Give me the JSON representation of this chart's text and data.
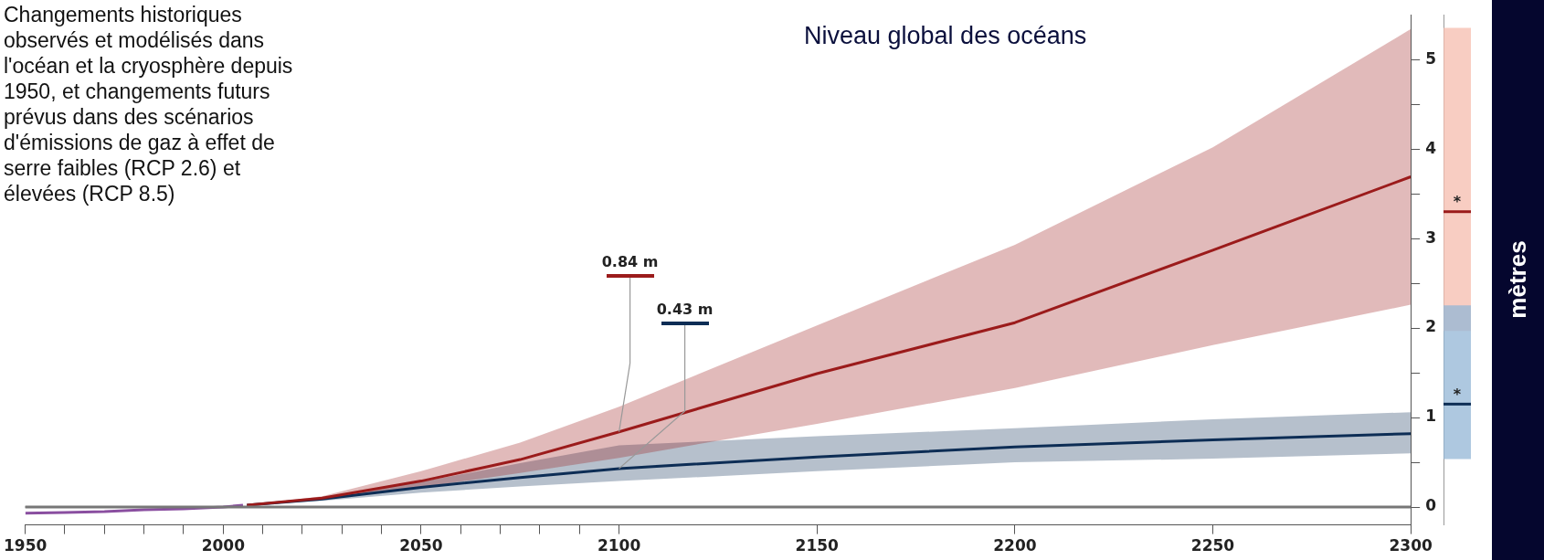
{
  "chart_data": [
    {
      "type": "line",
      "title": "Niveau global des océans",
      "annotations": [
        "Changements historiques observés et modélisés dans l'océan et la cryosphère depuis 1950, et changements futurs prévus dans des scénarios d'émissions de gaz à effet de serre faibles (RCP 2.6) et élevées (RCP 8.5)",
        {
          "text": "0.84 m",
          "x": 2100,
          "y": 0.84
        },
        {
          "text": "0.43 m",
          "x": 2100,
          "y": 0.43
        }
      ],
      "series": [
        {
          "color": "#8a4fa0",
          "x": [
            1950,
            1960,
            1970,
            1980,
            1990,
            2000,
            2005
          ],
          "values": [
            -0.07,
            -0.06,
            -0.05,
            -0.03,
            -0.02,
            0,
            0.02
          ]
        },
        {
          "color": "#9b1b1b",
          "x": [
            2006,
            2025,
            2050,
            2075,
            2100,
            2150,
            2200,
            2250,
            2300
          ],
          "values": [
            0.02,
            0.1,
            0.29,
            0.53,
            0.84,
            1.49,
            2.06,
            2.87,
            3.69
          ],
          "lower": [
            0.02,
            0.08,
            0.22,
            0.38,
            0.55,
            0.93,
            1.33,
            1.81,
            2.26
          ],
          "upper": [
            0.02,
            0.12,
            0.4,
            0.72,
            1.12,
            2.03,
            2.93,
            4.02,
            5.34
          ]
        },
        {
          "color": "#0d2d55",
          "x": [
            2006,
            2025,
            2050,
            2075,
            2100,
            2150,
            2200,
            2250,
            2300
          ],
          "values": [
            0.02,
            0.09,
            0.22,
            0.33,
            0.43,
            0.56,
            0.67,
            0.75,
            0.82
          ],
          "lower": [
            0.02,
            0.07,
            0.16,
            0.23,
            0.29,
            0.4,
            0.5,
            0.54,
            0.6
          ],
          "upper": [
            0.02,
            0.11,
            0.28,
            0.49,
            0.69,
            0.79,
            0.88,
            0.98,
            1.06
          ]
        }
      ],
      "xlim": [
        1950,
        2300
      ],
      "xticks": [
        1950,
        {
          "value": 1960,
          "label": null
        },
        {
          "value": 1970,
          "label": null
        },
        {
          "value": 1980,
          "label": null
        },
        {
          "value": 1990,
          "label": null
        },
        2000,
        {
          "value": 2010,
          "label": null
        },
        {
          "value": 2020,
          "label": null
        },
        {
          "value": 2030,
          "label": null
        },
        {
          "value": 2040,
          "label": null
        },
        2050,
        {
          "value": 2060,
          "label": null
        },
        {
          "value": 2070,
          "label": null
        },
        {
          "value": 2080,
          "label": null
        },
        {
          "value": 2090,
          "label": null
        },
        2100,
        2150,
        2200,
        2250,
        2300
      ],
      "ylim": [
        -0.2,
        5.5
      ],
      "yticks": [
        0,
        {
          "value": 0.5,
          "label": null
        },
        1,
        {
          "value": 1.5,
          "label": null
        },
        2,
        {
          "value": 2.5,
          "label": null
        },
        3,
        {
          "value": 3.5,
          "label": null
        },
        4,
        {
          "value": 4.5,
          "label": null
        },
        5
      ],
      "ref_lines": [
        {
          "axis": "y",
          "value": 0,
          "color": "#777777"
        }
      ],
      "legend": false
    },
    {
      "type": "bar",
      "ylabel": "mètres",
      "categories": [
        null
      ],
      "series": [
        {
          "color": "#f5bcae",
          "values": [
            3.38
          ],
          "base": [
            1.97
          ]
        },
        {
          "color": "#93b5d6",
          "values": [
            1.71
          ],
          "base": [
            0.54
          ]
        }
      ],
      "ylim": [
        -0.2,
        5.5
      ],
      "ref_lines": [
        {
          "axis": "y",
          "value": 3.3,
          "color": "#9b1b1b"
        },
        {
          "axis": "y",
          "value": 1.15,
          "color": "#0d2d55"
        }
      ],
      "annotations": [
        {
          "text": "*",
          "y": 3.3
        },
        {
          "text": "*",
          "y": 1.15
        }
      ],
      "tick_labels": false,
      "legend": false
    }
  ]
}
